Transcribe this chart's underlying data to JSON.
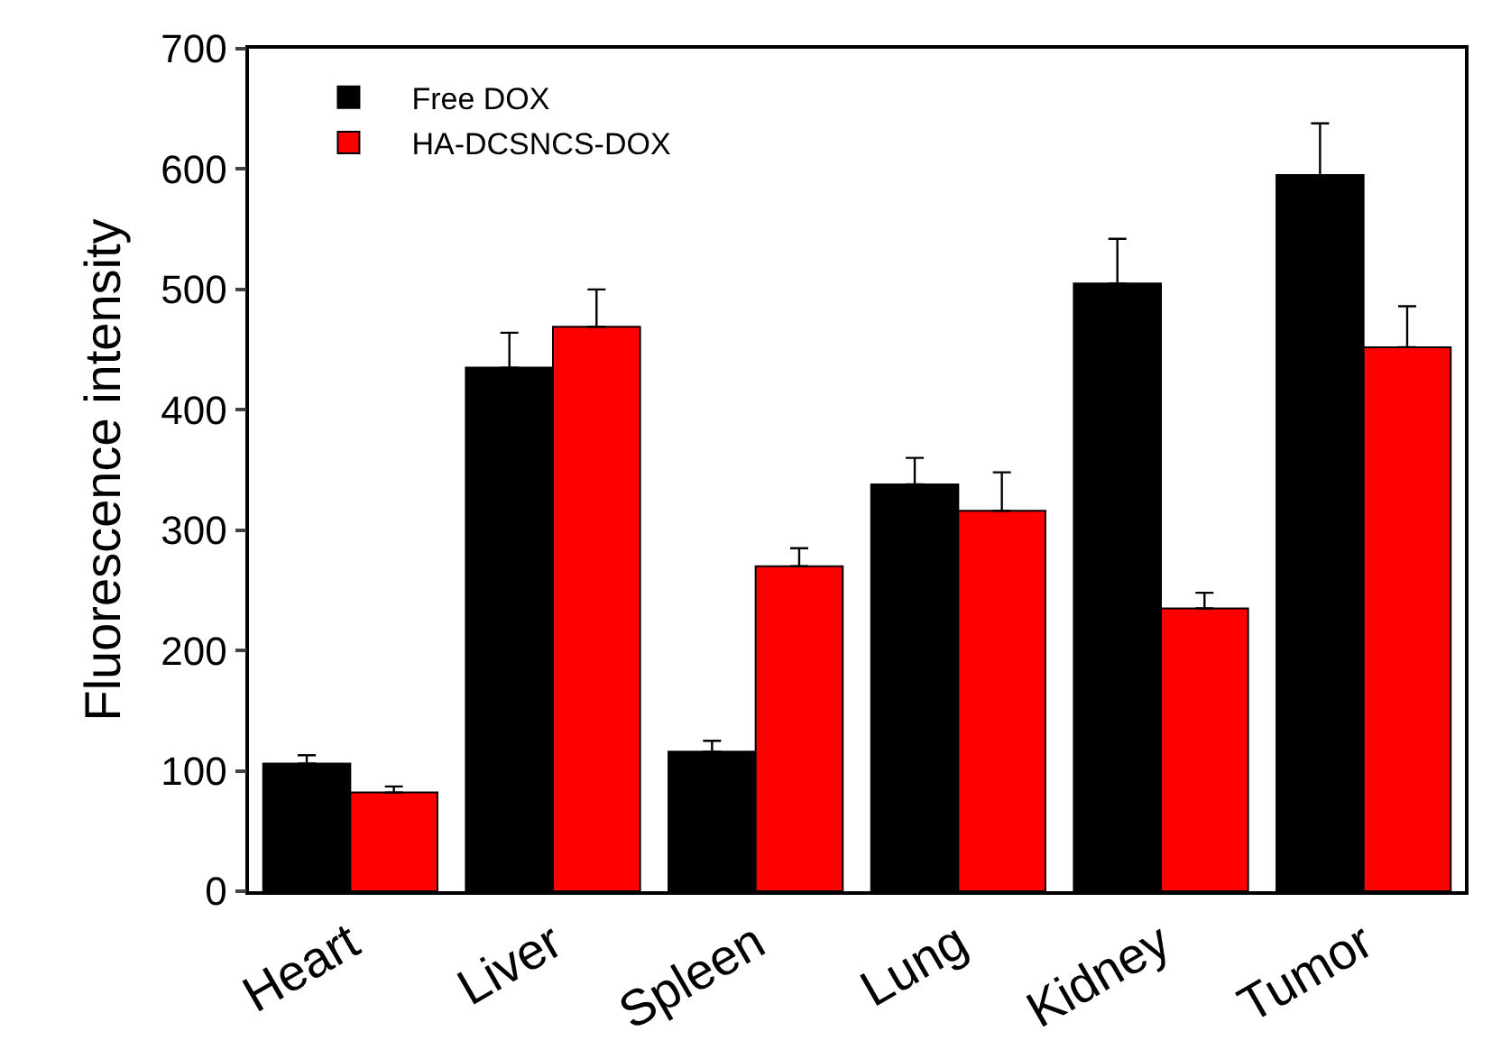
{
  "chart_data": {
    "type": "bar",
    "ylabel": "Fluorescence intensity",
    "categories": [
      "Heart",
      "Liver",
      "Spleen",
      "Lung",
      "Kidney",
      "Tumor"
    ],
    "series": [
      {
        "name": "Free DOX",
        "color": "#000000",
        "values": [
          106,
          435,
          116,
          338,
          505,
          595
        ],
        "errors": [
          [
            106,
            113
          ],
          [
            435,
            464
          ],
          [
            116,
            125
          ],
          [
            338,
            360
          ],
          [
            505,
            542
          ],
          [
            595,
            638
          ]
        ]
      },
      {
        "name": "HA-DCSNCS-DOX",
        "color": "#ff0000",
        "values": [
          82,
          469,
          270,
          316,
          235,
          452
        ],
        "errors": [
          [
            82,
            87
          ],
          [
            469,
            500
          ],
          [
            270,
            285
          ],
          [
            316,
            348
          ],
          [
            235,
            248
          ],
          [
            452,
            486
          ]
        ]
      }
    ],
    "ylim": [
      0,
      700
    ],
    "yticks": [
      0,
      100,
      200,
      300,
      400,
      500,
      600,
      700
    ],
    "grid": false,
    "legend": "top left"
  }
}
